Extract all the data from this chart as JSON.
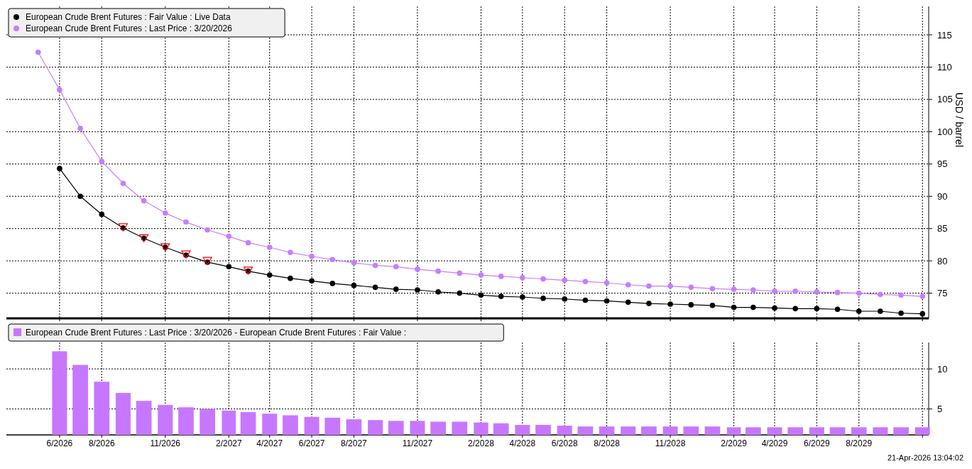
{
  "chart_data": [
    {
      "type": "line",
      "ylabel": "USD / barrel",
      "xlim": [
        "2026-03-16",
        "2029-11-10"
      ],
      "ylim": [
        71.1,
        119.4
      ],
      "yticks": [
        75,
        80,
        85,
        90,
        95,
        100,
        105,
        110,
        115
      ],
      "xticks": [
        {
          "value": "2026-06",
          "label": null
        },
        {
          "value": "2026-08",
          "label": null
        },
        {
          "value": "2026-11",
          "label": null
        },
        {
          "value": "2027-02",
          "label": null
        },
        {
          "value": "2027-04",
          "label": null
        },
        {
          "value": "2027-06",
          "label": null
        },
        {
          "value": "2027-08",
          "label": null
        },
        {
          "value": "2027-11",
          "label": null
        },
        {
          "value": "2028-02",
          "label": null
        },
        {
          "value": "2028-04",
          "label": null
        },
        {
          "value": "2028-06",
          "label": null
        },
        {
          "value": "2028-08",
          "label": null
        },
        {
          "value": "2028-11",
          "label": null
        },
        {
          "value": "2029-02",
          "label": null
        },
        {
          "value": "2029-04",
          "label": null
        },
        {
          "value": "2029-06",
          "label": null
        },
        {
          "value": "2029-08",
          "label": null
        },
        {
          "value": "2029-11",
          "label": null
        }
      ],
      "tick_labels": "y",
      "grid": true,
      "legend": "top left",
      "marker": "circle",
      "series": [
        {
          "name": "European Crude Brent Futures : Fair Value : Live Data",
          "color": "#000000",
          "x": [
            "2026-06",
            "2026-07",
            "2026-08",
            "2026-09",
            "2026-10",
            "2026-11",
            "2026-12",
            "2027-01",
            "2027-02",
            "2027-03",
            "2027-04",
            "2027-05",
            "2027-06",
            "2027-07",
            "2027-08",
            "2027-09",
            "2027-10",
            "2027-11",
            "2027-12",
            "2028-01",
            "2028-02",
            "2028-03",
            "2028-04",
            "2028-05",
            "2028-06",
            "2028-07",
            "2028-08",
            "2028-09",
            "2028-10",
            "2028-11",
            "2028-12",
            "2029-01",
            "2029-02",
            "2029-03",
            "2029-04",
            "2029-05",
            "2029-06",
            "2029-07",
            "2029-08",
            "2029-09",
            "2029-10",
            "2029-11"
          ],
          "values": [
            94.3,
            90.0,
            87.2,
            85.1,
            83.5,
            82.1,
            80.9,
            79.8,
            79.1,
            78.4,
            77.8,
            77.3,
            76.9,
            76.5,
            76.2,
            75.9,
            75.6,
            75.5,
            75.2,
            75.0,
            74.7,
            74.5,
            74.4,
            74.2,
            74.1,
            73.9,
            73.8,
            73.6,
            73.4,
            73.3,
            73.2,
            73.1,
            72.8,
            72.8,
            72.7,
            72.6,
            72.6,
            72.5,
            72.2,
            72.2,
            71.9,
            71.8
          ]
        },
        {
          "name": "European Crude Brent Futures : Last Price : 3/20/2026",
          "color": "#c77dff",
          "x": [
            "2026-05",
            "2026-06",
            "2026-07",
            "2026-08",
            "2026-09",
            "2026-10",
            "2026-11",
            "2026-12",
            "2027-01",
            "2027-02",
            "2027-03",
            "2027-04",
            "2027-05",
            "2027-06",
            "2027-07",
            "2027-08",
            "2027-09",
            "2027-10",
            "2027-11",
            "2027-12",
            "2028-01",
            "2028-02",
            "2028-03",
            "2028-04",
            "2028-05",
            "2028-06",
            "2028-07",
            "2028-08",
            "2028-09",
            "2028-10",
            "2028-11",
            "2028-12",
            "2029-01",
            "2029-02",
            "2029-03",
            "2029-04",
            "2029-05",
            "2029-06",
            "2029-07",
            "2029-08",
            "2029-09",
            "2029-10",
            "2029-11"
          ],
          "values": [
            112.3,
            106.5,
            100.5,
            95.4,
            92.0,
            89.3,
            87.4,
            86.0,
            84.8,
            83.8,
            82.8,
            82.1,
            81.3,
            80.7,
            80.2,
            79.7,
            79.3,
            79.1,
            78.7,
            78.4,
            78.1,
            77.8,
            77.6,
            77.4,
            77.2,
            77.0,
            76.8,
            76.6,
            76.3,
            76.1,
            76.1,
            75.9,
            75.7,
            75.6,
            75.5,
            75.3,
            75.3,
            75.2,
            75.1,
            75.0,
            74.8,
            74.7,
            74.5
          ]
        },
        {
          "type": "scatter",
          "marker": "triangle",
          "color": "#ff0000",
          "x": [
            "2026-09",
            "2026-10",
            "2026-11",
            "2026-12",
            "2027-01",
            "2027-03"
          ],
          "values": [
            85.3,
            83.6,
            82.2,
            81.1,
            80.1,
            78.6
          ]
        }
      ]
    },
    {
      "type": "bar",
      "xlim": [
        "2026-03-16",
        "2029-11-10"
      ],
      "ylim": [
        1.75,
        13.3
      ],
      "yticks": [
        5,
        10
      ],
      "xticks": [
        {
          "value": "2026-06",
          "label": "6/2026"
        },
        {
          "value": "2026-08",
          "label": "8/2026"
        },
        {
          "value": "2026-11",
          "label": "11/2026"
        },
        {
          "value": "2027-02",
          "label": "2/2027"
        },
        {
          "value": "2027-04",
          "label": "4/2027"
        },
        {
          "value": "2027-06",
          "label": "6/2027"
        },
        {
          "value": "2027-08",
          "label": "8/2027"
        },
        {
          "value": "2027-11",
          "label": "11/2027"
        },
        {
          "value": "2028-02",
          "label": "2/2028"
        },
        {
          "value": "2028-04",
          "label": "4/2028"
        },
        {
          "value": "2028-06",
          "label": "6/2028"
        },
        {
          "value": "2028-08",
          "label": "8/2028"
        },
        {
          "value": "2028-11",
          "label": "11/2028"
        },
        {
          "value": "2029-02",
          "label": "2/2029"
        },
        {
          "value": "2029-04",
          "label": "4/2029"
        },
        {
          "value": "2029-06",
          "label": "6/2029"
        },
        {
          "value": "2029-08",
          "label": "8/2029"
        },
        {
          "value": "2029-11",
          "label": null
        }
      ],
      "grid": true,
      "legend": "top left",
      "x": [
        "2026-06",
        "2026-07",
        "2026-08",
        "2026-09",
        "2026-10",
        "2026-11",
        "2026-12",
        "2027-01",
        "2027-02",
        "2027-03",
        "2027-04",
        "2027-05",
        "2027-06",
        "2027-07",
        "2027-08",
        "2027-09",
        "2027-10",
        "2027-11",
        "2027-12",
        "2028-01",
        "2028-02",
        "2028-03",
        "2028-04",
        "2028-05",
        "2028-06",
        "2028-07",
        "2028-08",
        "2028-09",
        "2028-10",
        "2028-11",
        "2028-12",
        "2029-01",
        "2029-02",
        "2029-03",
        "2029-04",
        "2029-05",
        "2029-06",
        "2029-07",
        "2029-08",
        "2029-09",
        "2029-10",
        "2029-11"
      ],
      "series": [
        {
          "name": "European Crude Brent Futures : Last Price : 3/20/2026 - European Crude Brent Futures : Fair Value :",
          "color": "#c777ff",
          "values": [
            12.2,
            10.5,
            8.4,
            7.0,
            6.0,
            5.5,
            5.2,
            5.0,
            4.8,
            4.6,
            4.4,
            4.2,
            4.0,
            3.9,
            3.7,
            3.6,
            3.5,
            3.5,
            3.4,
            3.4,
            3.3,
            3.2,
            3.0,
            3.0,
            2.9,
            2.8,
            2.8,
            2.8,
            2.8,
            2.8,
            2.8,
            2.8,
            2.7,
            2.7,
            2.7,
            2.7,
            2.7,
            2.7,
            2.7,
            2.7,
            2.7,
            2.7
          ]
        }
      ],
      "annotations": [
        "21-Apr-2026 13:04:02"
      ]
    }
  ]
}
